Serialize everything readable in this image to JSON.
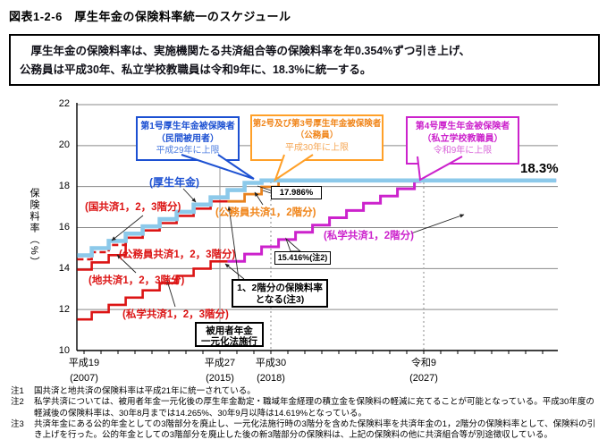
{
  "title": "図表1-2-6　厚生年金の保険料率統一のスケジュール",
  "summary": {
    "line1": "　厚生年金の保険料率は、実施機関たる共済組合等の保険料率を年0.354%ずつ引き上げ、",
    "line2": "公務員は平成30年、私立学校教職員は令和9年に、18.3%に統一する。"
  },
  "chart_data": {
    "type": "line",
    "subtype": "step",
    "ylabel": "保険料率（%）",
    "ylim": [
      10,
      22
    ],
    "yticks": [
      10,
      12,
      14,
      16,
      18,
      20,
      22
    ],
    "grid": "horizontal",
    "xticks": [
      {
        "era": "平成19",
        "year": "(2007)",
        "value": 2007
      },
      {
        "era": "平成27",
        "year": "(2015)",
        "value": 2015
      },
      {
        "era": "平成30",
        "year": "(2018)",
        "value": 2018
      },
      {
        "era": "令和9",
        "year": "(2027)",
        "value": 2027
      }
    ],
    "series": [
      {
        "name": "国共済1，2，3階分",
        "color": "#dc1414",
        "dash": "7 4",
        "width": 2.6,
        "points": [
          [
            2006.6,
            14.45
          ],
          [
            2007.45,
            14.8
          ],
          [
            2008.45,
            15.154
          ],
          [
            2009.45,
            15.508
          ]
        ]
      },
      {
        "name": "地共済1，2，3階分（平成21年に統一後は公務員共済1，2，3階分）",
        "color": "#dc1414",
        "dash": "",
        "width": 2.6,
        "points": [
          [
            2006.6,
            13.95
          ],
          [
            2007.45,
            14.304
          ],
          [
            2008.45,
            14.658
          ],
          [
            2009.45,
            15.508
          ],
          [
            2010.45,
            15.862
          ],
          [
            2011.45,
            16.216
          ],
          [
            2012.45,
            16.57
          ],
          [
            2013.45,
            16.924
          ],
          [
            2014.45,
            17.278
          ],
          [
            2015.45,
            17.278
          ]
        ]
      },
      {
        "name": "私学共済1，2，3階分",
        "color": "#dc1414",
        "dash": "",
        "width": 2.6,
        "points": [
          [
            2006.6,
            11.52
          ],
          [
            2007.45,
            11.874
          ],
          [
            2008.45,
            12.228
          ],
          [
            2009.45,
            12.582
          ],
          [
            2010.45,
            12.936
          ],
          [
            2011.45,
            13.29
          ],
          [
            2012.45,
            13.644
          ],
          [
            2013.45,
            13.998
          ],
          [
            2014.45,
            14.352
          ],
          [
            2015.45,
            14.352
          ]
        ]
      },
      {
        "name": "公務員共済1，2階分",
        "color": "#e8821e",
        "dash": "",
        "width": 2.8,
        "points": [
          [
            2015.45,
            17.278
          ],
          [
            2016.45,
            17.632
          ],
          [
            2017.45,
            17.986
          ],
          [
            2018.45,
            18.3
          ],
          [
            2020.5,
            18.3
          ]
        ]
      },
      {
        "name": "私学共済1，2階分",
        "color": "#cc22cc",
        "dash": "",
        "width": 3,
        "points": [
          [
            2015.45,
            14.354
          ],
          [
            2016.45,
            14.708
          ],
          [
            2017.45,
            15.062
          ],
          [
            2018.45,
            15.416
          ],
          [
            2019.45,
            15.77
          ],
          [
            2020.45,
            16.124
          ],
          [
            2021.45,
            16.478
          ],
          [
            2022.45,
            16.832
          ],
          [
            2023.45,
            17.186
          ],
          [
            2024.45,
            17.54
          ],
          [
            2025.45,
            17.894
          ],
          [
            2026.45,
            18.248
          ],
          [
            2026.78,
            18.3
          ],
          [
            2034.8,
            18.3
          ]
        ]
      },
      {
        "name": "厚生年金",
        "color": "#8cc9ea",
        "dash": "",
        "width": 4.6,
        "points": [
          [
            2006.6,
            14.642
          ],
          [
            2007.45,
            14.996
          ],
          [
            2008.45,
            15.35
          ],
          [
            2009.45,
            15.704
          ],
          [
            2010.45,
            16.058
          ],
          [
            2011.45,
            16.412
          ],
          [
            2012.45,
            16.766
          ],
          [
            2013.45,
            17.12
          ],
          [
            2014.45,
            17.474
          ],
          [
            2015.45,
            17.828
          ],
          [
            2016.45,
            18.182
          ],
          [
            2017.45,
            18.3
          ],
          [
            2034.8,
            18.3
          ]
        ]
      }
    ],
    "annotations": {
      "cap_rate": "18.3%",
      "komuin_point": "17.986%",
      "shigaku_point": "15.416%(注2)"
    }
  },
  "callouts": {
    "blue": {
      "line1": "第1号厚生年金被保険者",
      "line2": "（民間被用者）",
      "line3": "平成29年に上限"
    },
    "orange": {
      "line1": "第2号及び第3号厚生年金被保険者",
      "line2": "（公務員）",
      "line3": "平成30年に上限"
    },
    "magenta": {
      "line1": "第4号厚生年金被保険者",
      "line2": "（私立学校教職員）",
      "line3": "令和9年に上限"
    }
  },
  "black_boxes": {
    "tier": {
      "line1": "1、2階分の保険料率",
      "line2": "となる(注3)"
    },
    "genka": {
      "line1": "被用者年金",
      "line2": "一元化法施行"
    }
  },
  "line_labels": {
    "kosei": "(厚生年金)",
    "kokukyosai": "(国共済1，2，3階分)",
    "komuin123": "(公務員共済1，2，3階分)",
    "chikyosai": "(地共済1，2，3階分)",
    "shigaku123": "(私学共済1，2，3階分)",
    "komuin12": "(公務員共済1，2階分)",
    "shigaku12": "(私学共済1，2階分)"
  },
  "notes": [
    {
      "label": "注1",
      "text": "国共済と地共済の保険料率は平成21年に統一されている。"
    },
    {
      "label": "注2",
      "text": "私学共済については、被用者年金一元化後の厚生年金勘定・職域年金経理の積立金を保険料の軽減に充てることが可能となっている。平成30年度の軽減後の保険料率は、30年8月までは14.265%、30年9月以降は14.619%となっている。"
    },
    {
      "label": "注3",
      "text": "共済年金にある公的年金としての3階部分を廃止し、一元化法施行時の3階分を含めた保険料率を共済年金の1，2階分の保険料率として、保険料の引き上げを行った。公的年金としての3階部分を廃止した後の新3階部分の保険料は、上記の保険料の他に共済組合等が別途徴収している。"
    }
  ],
  "colors": {
    "blue_box": "#1c50d2",
    "orange_box": "#ffa028",
    "magenta_box": "#cc22cc",
    "kosei_line": "#8cc9ea",
    "kyosai_line": "#dc1414",
    "komuin12_line": "#e8821e",
    "shigaku12_line": "#cc22cc"
  }
}
